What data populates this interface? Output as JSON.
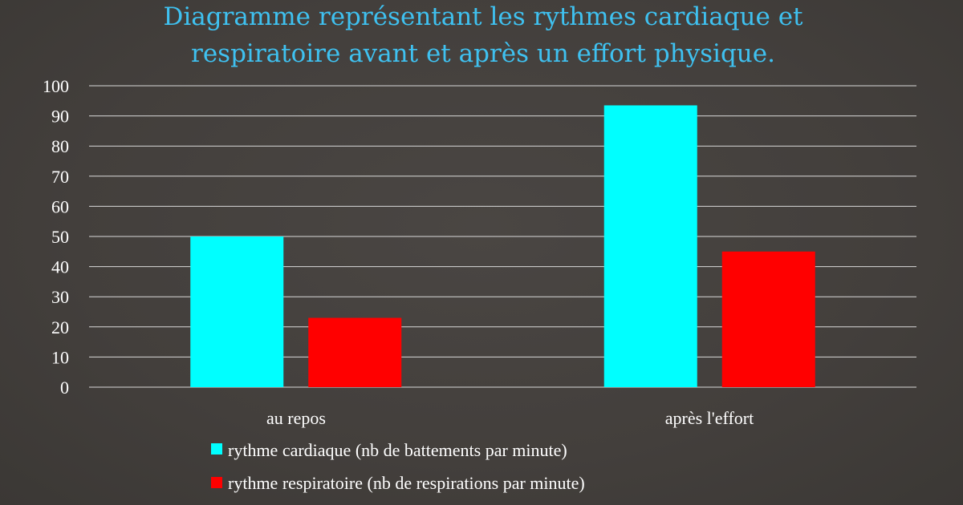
{
  "chart_data": {
    "type": "bar",
    "title_lines": [
      "Diagramme représentant les rythmes cardiaque et",
      "respiratoire avant et après un effort physique."
    ],
    "categories": [
      "au repos",
      "après l'effort"
    ],
    "series": [
      {
        "name": "rythme cardiaque (nb de battements par minute)",
        "color": "#00ffff",
        "values": [
          50,
          93.5
        ]
      },
      {
        "name": "rythme respiratoire (nb de respirations par minute)",
        "color": "#ff0000",
        "values": [
          23,
          45
        ]
      }
    ],
    "ylim": [
      0,
      100
    ],
    "yticks": [
      "0",
      "10",
      "20",
      "30",
      "40",
      "50",
      "60",
      "70",
      "80",
      "90",
      "100"
    ],
    "grid": true,
    "legend_position": "bottom"
  }
}
